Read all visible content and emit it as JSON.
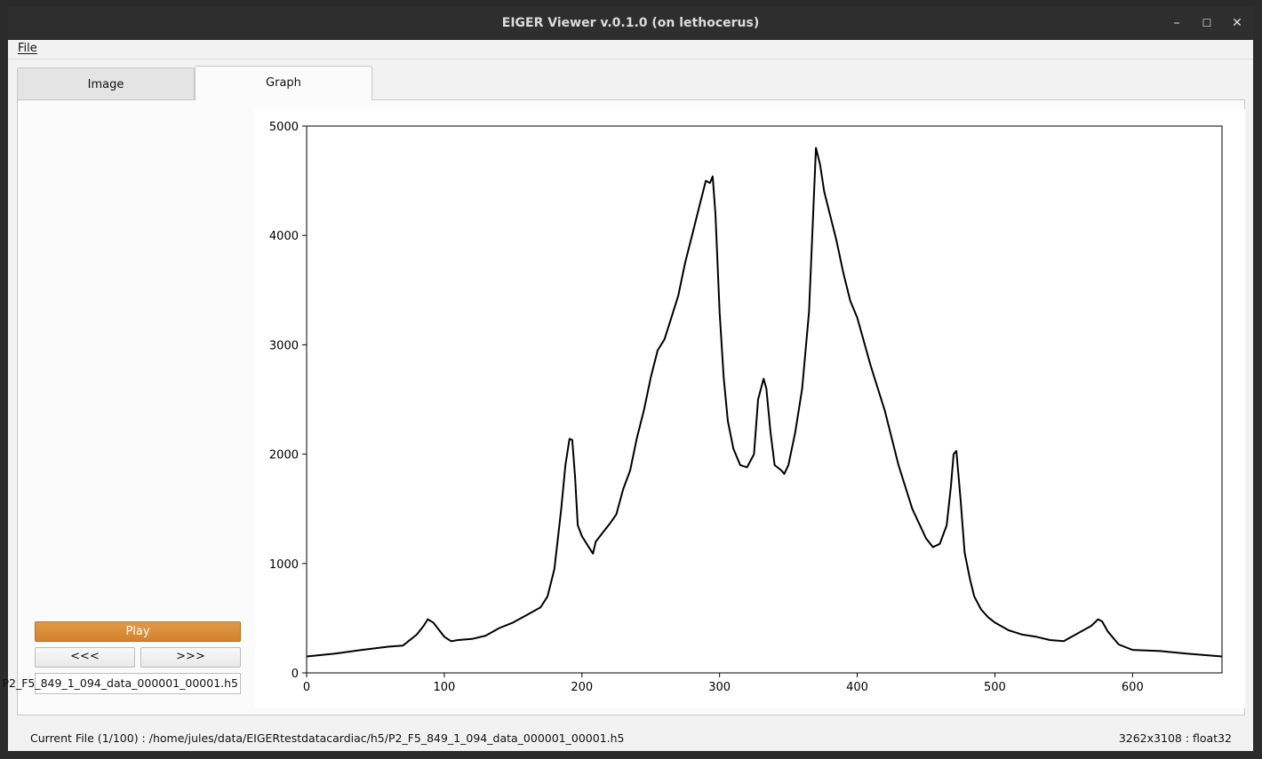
{
  "window": {
    "title": "EIGER Viewer v.0.1.0 (on lethocerus)",
    "controls": {
      "minimize": "–",
      "maximize": "☐",
      "close": "✕"
    }
  },
  "menubar": {
    "file": "File"
  },
  "tabs": [
    {
      "label": "Image",
      "active": false
    },
    {
      "label": "Graph",
      "active": true
    }
  ],
  "controls": {
    "play": "Play",
    "prev": "<<<",
    "next": ">>>",
    "file_field": "P2_F5_849_1_094_data_000001_00001.h5"
  },
  "status": {
    "current_file": "Current File (1/100) : /home/jules/data/EIGERtestdatacardiac/h5/P2_F5_849_1_094_data_000001_00001.h5",
    "image_info": "3262x3108 : float32"
  },
  "colors": {
    "accent": "#d88a36",
    "line": "#000000"
  },
  "chart_data": {
    "type": "line",
    "xlim": [
      0,
      665
    ],
    "ylim": [
      0,
      5000
    ],
    "xticks": [
      0,
      100,
      200,
      300,
      400,
      500,
      600
    ],
    "yticks": [
      0,
      1000,
      2000,
      3000,
      4000,
      5000
    ],
    "grid": false,
    "series": [
      {
        "x": [
          0,
          20,
          40,
          60,
          70,
          80,
          85,
          88,
          92,
          100,
          105,
          110,
          120,
          130,
          140,
          150,
          160,
          170,
          175,
          180,
          185,
          188,
          191,
          193,
          195,
          197,
          200,
          205,
          208,
          210,
          215,
          220,
          225,
          230,
          235,
          240,
          245,
          250,
          255,
          260,
          265,
          270,
          275,
          280,
          285,
          290,
          293,
          295,
          297,
          300,
          303,
          306,
          310,
          315,
          320,
          325,
          328,
          332,
          334,
          337,
          340,
          345,
          347,
          350,
          355,
          360,
          365,
          368,
          370,
          373,
          376,
          380,
          385,
          390,
          395,
          400,
          410,
          420,
          430,
          440,
          450,
          455,
          460,
          465,
          468,
          470,
          472,
          475,
          478,
          482,
          485,
          490,
          495,
          500,
          510,
          520,
          530,
          540,
          550,
          560,
          570,
          575,
          578,
          582,
          590,
          600,
          620,
          640,
          665
        ],
        "y": [
          150,
          175,
          210,
          240,
          250,
          350,
          430,
          490,
          460,
          330,
          290,
          300,
          310,
          340,
          410,
          460,
          530,
          600,
          700,
          950,
          1500,
          1900,
          2140,
          2130,
          1800,
          1350,
          1250,
          1150,
          1090,
          1200,
          1280,
          1360,
          1450,
          1680,
          1850,
          2150,
          2400,
          2700,
          2950,
          3050,
          3250,
          3450,
          3750,
          4000,
          4250,
          4500,
          4480,
          4540,
          4200,
          3300,
          2700,
          2300,
          2050,
          1900,
          1880,
          2000,
          2500,
          2690,
          2600,
          2200,
          1900,
          1850,
          1820,
          1900,
          2200,
          2600,
          3300,
          4200,
          4800,
          4650,
          4400,
          4200,
          3950,
          3650,
          3400,
          3250,
          2800,
          2400,
          1900,
          1500,
          1230,
          1150,
          1180,
          1350,
          1700,
          2000,
          2030,
          1600,
          1100,
          850,
          700,
          580,
          510,
          460,
          390,
          350,
          330,
          300,
          290,
          360,
          430,
          490,
          470,
          380,
          260,
          210,
          200,
          175,
          150
        ]
      }
    ]
  }
}
